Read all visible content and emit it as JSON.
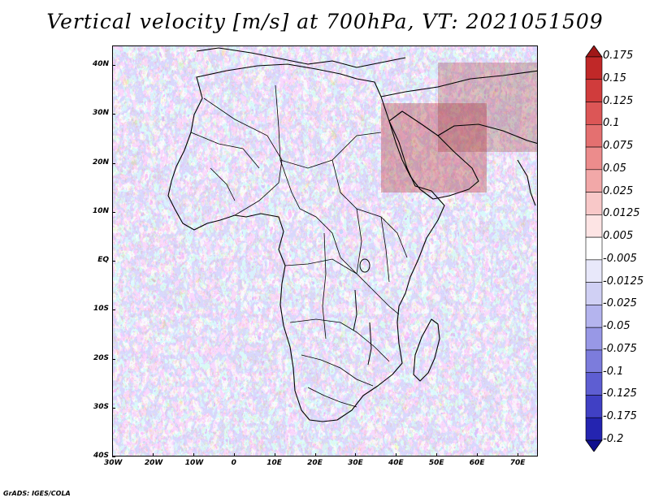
{
  "title": "Vertical velocity [m/s] at 700hPa, VT: 2021051509",
  "credit": "GrADS: IGES/COLA",
  "map": {
    "lon_labels": [
      "30W",
      "20W",
      "10W",
      "0",
      "10E",
      "20E",
      "30E",
      "40E",
      "50E",
      "60E",
      "70E"
    ],
    "lat_labels": [
      "40N",
      "30N",
      "20N",
      "10N",
      "EQ",
      "10S",
      "20S",
      "30S",
      "40S"
    ],
    "lon_range": [
      -30,
      75
    ],
    "lat_range": [
      -40,
      44
    ]
  },
  "colorbar": {
    "labels": [
      "0.175",
      "0.15",
      "0.125",
      "0.1",
      "0.075",
      "0.05",
      "0.025",
      "0.0125",
      "0.005",
      "-0.005",
      "-0.0125",
      "-0.025",
      "-0.05",
      "-0.075",
      "-0.1",
      "-0.125",
      "-0.175",
      "-0.2"
    ],
    "colors": [
      "#a01818",
      "#c02828",
      "#d03c3c",
      "#dc5656",
      "#e47070",
      "#ec8c8c",
      "#f2a8a8",
      "#f8c8c8",
      "#fde4e4",
      "#ffffff",
      "#e8e8fa",
      "#d0d0f4",
      "#b4b4ee",
      "#9898e6",
      "#7c7cdc",
      "#5e5ed2",
      "#4040c4",
      "#2424b0",
      "#10108e"
    ]
  },
  "colors": {
    "land_outline": "#000000",
    "positive": "#e07070",
    "negative": "#7070e0"
  }
}
